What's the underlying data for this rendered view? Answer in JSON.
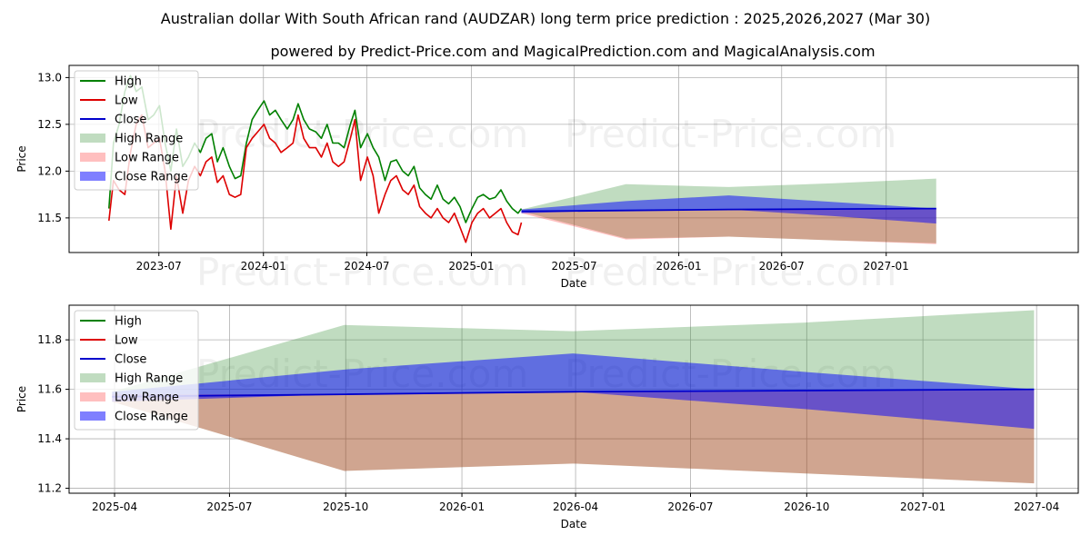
{
  "title": "Australian dollar With South African rand (AUDZAR) long term price prediction : 2025,2026,2027 (Mar 30)",
  "subtitle": "powered by Predict-Price.com and MagicalPrediction.com and MagicalAnalysis.com",
  "watermark": "Predict-Price.com",
  "colors": {
    "high": "#008000",
    "low": "#dd0000",
    "close": "#0000cc",
    "high_range": "#c2dfc2",
    "low_range": "#ffbfbf",
    "close_range": "#8080ff",
    "grid": "#b0b0b0"
  },
  "legend": {
    "items": [
      {
        "key": "high",
        "label": "High",
        "kind": "line"
      },
      {
        "key": "low",
        "label": "Low",
        "kind": "line"
      },
      {
        "key": "close",
        "label": "Close",
        "kind": "line"
      },
      {
        "key": "high_range",
        "label": "High Range",
        "kind": "patch"
      },
      {
        "key": "low_range",
        "label": "Low Range",
        "kind": "patch"
      },
      {
        "key": "close_range",
        "label": "Close Range",
        "kind": "patch"
      }
    ]
  },
  "chart_data": [
    {
      "type": "line",
      "panel": "top",
      "xlabel": "Date",
      "ylabel": "Price",
      "xlim": [
        "2023-01-24",
        "2027-12-05"
      ],
      "ylim": [
        11.13,
        13.13
      ],
      "xticks": [
        {
          "date": "2023-07-01",
          "label": "2023-07"
        },
        {
          "date": "2024-01-01",
          "label": "2024-01"
        },
        {
          "date": "2024-07-01",
          "label": "2024-07"
        },
        {
          "date": "2025-01-01",
          "label": "2025-01"
        },
        {
          "date": "2025-07-01",
          "label": "2025-07"
        },
        {
          "date": "2026-01-01",
          "label": "2026-01"
        },
        {
          "date": "2026-07-01",
          "label": "2026-07"
        },
        {
          "date": "2027-01-01",
          "label": "2027-01"
        }
      ],
      "yticks": [
        11.5,
        12.0,
        12.5,
        13.0
      ],
      "ytick_labels": [
        "11.5",
        "12.0",
        "12.5",
        "13.0"
      ],
      "grid": true,
      "legend_position": "upper-left",
      "history": {
        "high": [
          [
            "2023-04-04",
            11.6
          ],
          [
            "2023-04-12",
            12.3
          ],
          [
            "2023-04-22",
            12.5
          ],
          [
            "2023-05-02",
            12.85
          ],
          [
            "2023-05-12",
            13.02
          ],
          [
            "2023-05-22",
            12.85
          ],
          [
            "2023-06-01",
            12.9
          ],
          [
            "2023-06-12",
            12.55
          ],
          [
            "2023-06-22",
            12.6
          ],
          [
            "2023-07-02",
            12.7
          ],
          [
            "2023-07-12",
            12.3
          ],
          [
            "2023-07-22",
            12.0
          ],
          [
            "2023-08-01",
            12.45
          ],
          [
            "2023-08-12",
            12.05
          ],
          [
            "2023-08-22",
            12.15
          ],
          [
            "2023-09-02",
            12.3
          ],
          [
            "2023-09-12",
            12.2
          ],
          [
            "2023-09-22",
            12.35
          ],
          [
            "2023-10-02",
            12.4
          ],
          [
            "2023-10-12",
            12.1
          ],
          [
            "2023-10-22",
            12.25
          ],
          [
            "2023-11-02",
            12.05
          ],
          [
            "2023-11-12",
            11.92
          ],
          [
            "2023-11-22",
            11.95
          ],
          [
            "2023-12-02",
            12.3
          ],
          [
            "2023-12-12",
            12.55
          ],
          [
            "2023-12-22",
            12.65
          ],
          [
            "2024-01-02",
            12.75
          ],
          [
            "2024-01-12",
            12.6
          ],
          [
            "2024-01-22",
            12.65
          ],
          [
            "2024-02-01",
            12.55
          ],
          [
            "2024-02-12",
            12.45
          ],
          [
            "2024-02-22",
            12.55
          ],
          [
            "2024-03-02",
            12.72
          ],
          [
            "2024-03-12",
            12.55
          ],
          [
            "2024-03-22",
            12.45
          ],
          [
            "2024-04-02",
            12.42
          ],
          [
            "2024-04-12",
            12.35
          ],
          [
            "2024-04-22",
            12.5
          ],
          [
            "2024-05-02",
            12.3
          ],
          [
            "2024-05-12",
            12.3
          ],
          [
            "2024-05-22",
            12.25
          ],
          [
            "2024-06-02",
            12.5
          ],
          [
            "2024-06-10",
            12.65
          ],
          [
            "2024-06-20",
            12.25
          ],
          [
            "2024-07-02",
            12.4
          ],
          [
            "2024-07-12",
            12.25
          ],
          [
            "2024-07-22",
            12.15
          ],
          [
            "2024-08-02",
            11.9
          ],
          [
            "2024-08-12",
            12.1
          ],
          [
            "2024-08-22",
            12.12
          ],
          [
            "2024-09-02",
            12.0
          ],
          [
            "2024-09-12",
            11.95
          ],
          [
            "2024-09-22",
            12.05
          ],
          [
            "2024-10-02",
            11.82
          ],
          [
            "2024-10-12",
            11.75
          ],
          [
            "2024-10-22",
            11.7
          ],
          [
            "2024-11-02",
            11.85
          ],
          [
            "2024-11-12",
            11.7
          ],
          [
            "2024-11-22",
            11.65
          ],
          [
            "2024-12-02",
            11.72
          ],
          [
            "2024-12-12",
            11.62
          ],
          [
            "2024-12-22",
            11.45
          ],
          [
            "2025-01-02",
            11.6
          ],
          [
            "2025-01-12",
            11.72
          ],
          [
            "2025-01-22",
            11.75
          ],
          [
            "2025-02-02",
            11.7
          ],
          [
            "2025-02-12",
            11.72
          ],
          [
            "2025-02-22",
            11.8
          ],
          [
            "2025-03-04",
            11.68
          ],
          [
            "2025-03-14",
            11.6
          ],
          [
            "2025-03-24",
            11.55
          ],
          [
            "2025-03-30",
            11.6
          ]
        ],
        "low": [
          [
            "2023-04-04",
            11.47
          ],
          [
            "2023-04-12",
            11.9
          ],
          [
            "2023-04-22",
            11.8
          ],
          [
            "2023-05-02",
            11.75
          ],
          [
            "2023-05-12",
            12.2
          ],
          [
            "2023-05-22",
            12.5
          ],
          [
            "2023-06-01",
            12.6
          ],
          [
            "2023-06-12",
            12.25
          ],
          [
            "2023-06-22",
            12.3
          ],
          [
            "2023-07-02",
            12.35
          ],
          [
            "2023-07-12",
            12.0
          ],
          [
            "2023-07-22",
            11.38
          ],
          [
            "2023-08-01",
            11.95
          ],
          [
            "2023-08-12",
            11.55
          ],
          [
            "2023-08-22",
            11.9
          ],
          [
            "2023-09-02",
            12.05
          ],
          [
            "2023-09-12",
            11.95
          ],
          [
            "2023-09-22",
            12.1
          ],
          [
            "2023-10-02",
            12.15
          ],
          [
            "2023-10-12",
            11.88
          ],
          [
            "2023-10-22",
            11.95
          ],
          [
            "2023-11-02",
            11.75
          ],
          [
            "2023-11-12",
            11.72
          ],
          [
            "2023-11-22",
            11.75
          ],
          [
            "2023-12-02",
            12.25
          ],
          [
            "2023-12-12",
            12.35
          ],
          [
            "2023-12-22",
            12.42
          ],
          [
            "2024-01-02",
            12.5
          ],
          [
            "2024-01-12",
            12.35
          ],
          [
            "2024-01-22",
            12.3
          ],
          [
            "2024-02-01",
            12.2
          ],
          [
            "2024-02-12",
            12.25
          ],
          [
            "2024-02-22",
            12.3
          ],
          [
            "2024-03-02",
            12.6
          ],
          [
            "2024-03-12",
            12.35
          ],
          [
            "2024-03-22",
            12.25
          ],
          [
            "2024-04-02",
            12.25
          ],
          [
            "2024-04-12",
            12.15
          ],
          [
            "2024-04-22",
            12.3
          ],
          [
            "2024-05-02",
            12.1
          ],
          [
            "2024-05-12",
            12.05
          ],
          [
            "2024-05-22",
            12.1
          ],
          [
            "2024-06-02",
            12.35
          ],
          [
            "2024-06-10",
            12.55
          ],
          [
            "2024-06-20",
            11.9
          ],
          [
            "2024-07-02",
            12.15
          ],
          [
            "2024-07-12",
            11.95
          ],
          [
            "2024-07-22",
            11.55
          ],
          [
            "2024-08-02",
            11.75
          ],
          [
            "2024-08-12",
            11.9
          ],
          [
            "2024-08-22",
            11.95
          ],
          [
            "2024-09-02",
            11.8
          ],
          [
            "2024-09-12",
            11.75
          ],
          [
            "2024-09-22",
            11.85
          ],
          [
            "2024-10-02",
            11.62
          ],
          [
            "2024-10-12",
            11.55
          ],
          [
            "2024-10-22",
            11.5
          ],
          [
            "2024-11-02",
            11.6
          ],
          [
            "2024-11-12",
            11.5
          ],
          [
            "2024-11-22",
            11.45
          ],
          [
            "2024-12-02",
            11.55
          ],
          [
            "2024-12-12",
            11.4
          ],
          [
            "2024-12-22",
            11.24
          ],
          [
            "2025-01-02",
            11.45
          ],
          [
            "2025-01-12",
            11.55
          ],
          [
            "2025-01-22",
            11.6
          ],
          [
            "2025-02-02",
            11.5
          ],
          [
            "2025-02-12",
            11.55
          ],
          [
            "2025-02-22",
            11.6
          ],
          [
            "2025-03-04",
            11.45
          ],
          [
            "2025-03-14",
            11.35
          ],
          [
            "2025-03-24",
            11.32
          ],
          [
            "2025-03-30",
            11.45
          ]
        ]
      },
      "forecast": {
        "dates": [
          "2025-03-30",
          "2025-09-30",
          "2026-03-30",
          "2026-09-30",
          "2027-03-30"
        ],
        "close": [
          11.57,
          11.58,
          11.59,
          11.595,
          11.6
        ],
        "high_range": [
          [
            11.57,
            11.59
          ],
          [
            11.28,
            11.86
          ],
          [
            11.3,
            11.83
          ],
          [
            11.26,
            11.87
          ],
          [
            11.23,
            11.92
          ]
        ],
        "low_range": [
          [
            11.55,
            11.58
          ],
          [
            11.27,
            11.58
          ],
          [
            11.3,
            11.59
          ],
          [
            11.26,
            11.595
          ],
          [
            11.22,
            11.6
          ]
        ],
        "close_range": [
          [
            11.55,
            11.59
          ],
          [
            11.58,
            11.68
          ],
          [
            11.59,
            11.74
          ],
          [
            11.52,
            11.67
          ],
          [
            11.44,
            11.6
          ]
        ]
      }
    },
    {
      "type": "line",
      "panel": "bottom",
      "xlabel": "Date",
      "ylabel": "Price",
      "xlim": [
        "2025-02-24",
        "2027-05-04"
      ],
      "ylim": [
        11.18,
        11.94
      ],
      "xticks": [
        {
          "date": "2025-04-01",
          "label": "2025-04"
        },
        {
          "date": "2025-07-01",
          "label": "2025-07"
        },
        {
          "date": "2025-10-01",
          "label": "2025-10"
        },
        {
          "date": "2026-01-01",
          "label": "2026-01"
        },
        {
          "date": "2026-04-01",
          "label": "2026-04"
        },
        {
          "date": "2026-07-01",
          "label": "2026-07"
        },
        {
          "date": "2026-10-01",
          "label": "2026-10"
        },
        {
          "date": "2027-01-01",
          "label": "2027-01"
        },
        {
          "date": "2027-04-01",
          "label": "2027-04"
        }
      ],
      "yticks": [
        11.2,
        11.4,
        11.6,
        11.8
      ],
      "ytick_labels": [
        "11.2",
        "11.4",
        "11.6",
        "11.8"
      ],
      "grid": true,
      "legend_position": "upper-left",
      "forecast": {
        "dates": [
          "2025-03-30",
          "2025-09-30",
          "2026-03-30",
          "2026-09-30",
          "2027-03-30"
        ],
        "close": [
          11.57,
          11.58,
          11.59,
          11.595,
          11.6
        ],
        "high_range": [
          [
            11.55,
            11.59
          ],
          [
            11.27,
            11.86
          ],
          [
            11.3,
            11.835
          ],
          [
            11.26,
            11.87
          ],
          [
            11.22,
            11.92
          ]
        ],
        "low_range": [
          [
            11.55,
            11.58
          ],
          [
            11.27,
            11.58
          ],
          [
            11.3,
            11.59
          ],
          [
            11.26,
            11.595
          ],
          [
            11.22,
            11.6
          ]
        ],
        "close_range": [
          [
            11.55,
            11.59
          ],
          [
            11.58,
            11.68
          ],
          [
            11.59,
            11.745
          ],
          [
            11.52,
            11.67
          ],
          [
            11.44,
            11.6
          ]
        ]
      }
    }
  ]
}
